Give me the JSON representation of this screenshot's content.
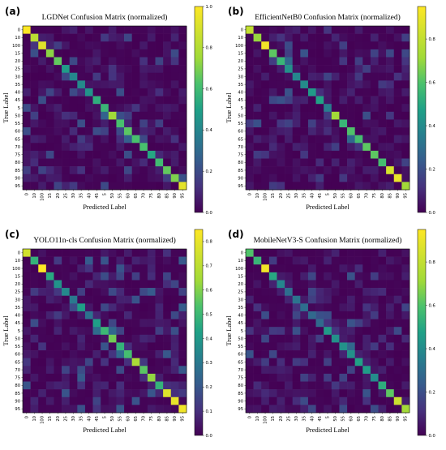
{
  "chart_data": [
    {
      "type": "heatmap",
      "panel_label": "(a)",
      "title": "LGDNet Confusion Matrix (normalized)",
      "xlabel": "Predicted Label",
      "ylabel": "True Label",
      "labels": [
        "0",
        "10",
        "100",
        "15",
        "20",
        "25",
        "30",
        "35",
        "40",
        "45",
        "5",
        "50",
        "55",
        "60",
        "65",
        "70",
        "75",
        "80",
        "85",
        "90",
        "95"
      ],
      "diagonal": [
        1.0,
        0.82,
        0.92,
        0.72,
        0.66,
        0.48,
        0.4,
        0.42,
        0.45,
        0.55,
        0.58,
        0.75,
        0.62,
        0.65,
        0.62,
        0.62,
        0.52,
        0.6,
        0.66,
        0.7,
        0.93
      ],
      "offdiag_seed": 11,
      "colorbar": {
        "min": 0.0,
        "max": 1.0,
        "ticks": [
          "0.0",
          "0.2",
          "0.4",
          "0.6",
          "0.8",
          "1.0"
        ]
      }
    },
    {
      "type": "heatmap",
      "panel_label": "(b)",
      "title": "EfficientNetB0 Confusion Matrix (normalized)",
      "xlabel": "Predicted Label",
      "ylabel": "True Label",
      "labels": [
        "0",
        "10",
        "100",
        "15",
        "20",
        "25",
        "30",
        "35",
        "40",
        "45",
        "5",
        "50",
        "55",
        "60",
        "65",
        "70",
        "75",
        "80",
        "85",
        "90",
        "95"
      ],
      "diagonal": [
        0.8,
        0.7,
        0.92,
        0.62,
        0.55,
        0.42,
        0.38,
        0.4,
        0.45,
        0.48,
        0.35,
        0.72,
        0.55,
        0.6,
        0.58,
        0.62,
        0.62,
        0.58,
        0.85,
        0.9,
        0.72
      ],
      "offdiag_seed": 23,
      "colorbar": {
        "min": 0.0,
        "max": 0.95,
        "ticks": [
          "0.0",
          "0.2",
          "0.4",
          "0.6",
          "0.8"
        ]
      }
    },
    {
      "type": "heatmap",
      "panel_label": "(c)",
      "title": "YOLO11n-cls Confusion Matrix (normalized)",
      "xlabel": "Predicted Label",
      "ylabel": "True Label",
      "labels": [
        "0",
        "10",
        "100",
        "15",
        "20",
        "25",
        "30",
        "35",
        "40",
        "45",
        "5",
        "50",
        "55",
        "60",
        "65",
        "70",
        "75",
        "80",
        "85",
        "90",
        "95"
      ],
      "diagonal": [
        0.75,
        0.48,
        0.85,
        0.45,
        0.38,
        0.35,
        0.3,
        0.42,
        0.28,
        0.42,
        0.5,
        0.58,
        0.48,
        0.52,
        0.66,
        0.55,
        0.62,
        0.48,
        0.78,
        0.8,
        0.82
      ],
      "offdiag_seed": 37,
      "colorbar": {
        "min": 0.0,
        "max": 0.85,
        "ticks": [
          "0.0",
          "0.1",
          "0.2",
          "0.3",
          "0.4",
          "0.5",
          "0.6",
          "0.7",
          "0.8"
        ]
      }
    },
    {
      "type": "heatmap",
      "panel_label": "(d)",
      "title": "MobileNetV3-S Confusion Matrix (normalized)",
      "xlabel": "Predicted Label",
      "ylabel": "True Label",
      "labels": [
        "0",
        "10",
        "100",
        "15",
        "20",
        "25",
        "30",
        "35",
        "40",
        "45",
        "5",
        "50",
        "55",
        "60",
        "65",
        "70",
        "75",
        "80",
        "85",
        "90",
        "95"
      ],
      "diagonal": [
        0.6,
        0.55,
        0.92,
        0.5,
        0.38,
        0.3,
        0.32,
        0.3,
        0.28,
        0.28,
        0.45,
        0.42,
        0.42,
        0.42,
        0.48,
        0.46,
        0.4,
        0.52,
        0.62,
        0.82,
        0.72
      ],
      "offdiag_seed": 53,
      "colorbar": {
        "min": 0.0,
        "max": 0.95,
        "ticks": [
          "0.0",
          "0.2",
          "0.4",
          "0.6",
          "0.8"
        ]
      }
    }
  ]
}
